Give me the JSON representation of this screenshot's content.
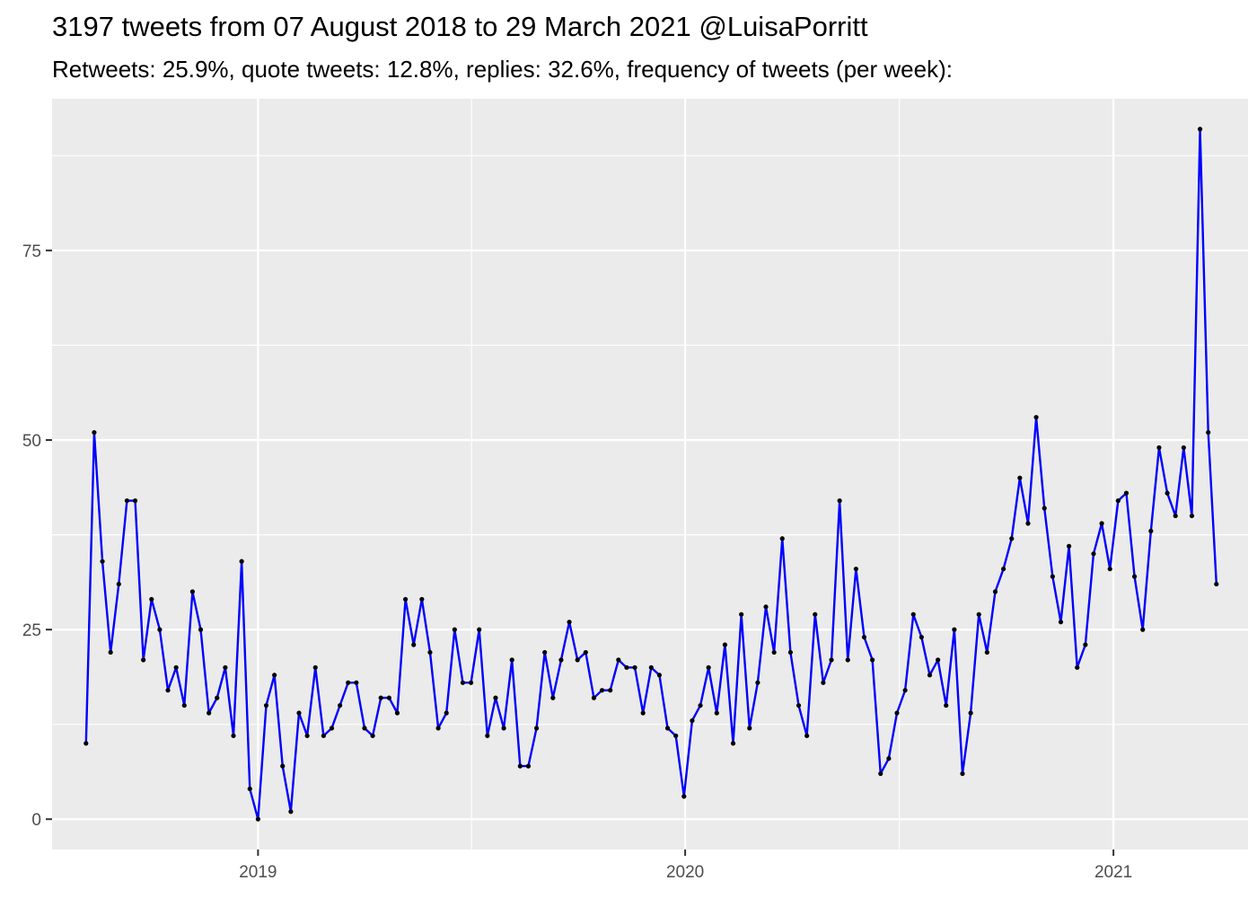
{
  "chart_data": {
    "type": "line",
    "title": "3197 tweets from 07 August 2018 to 29 March 2021 @LuisaPorritt",
    "subtitle": "Retweets: 25.9%, quote tweets: 12.8%, replies: 32.6%, frequency of tweets (per week):",
    "xlabel": "",
    "ylabel": "",
    "x_start": "2018-08-07",
    "x_step_days": 7,
    "xlim": [
      "2018-07-09",
      "2021-04-26"
    ],
    "ylim": [
      -4,
      95
    ],
    "x_ticks": [
      {
        "label": "2019",
        "date": "2019-01-01"
      },
      {
        "label": "2020",
        "date": "2020-01-01"
      },
      {
        "label": "2021",
        "date": "2021-01-01"
      }
    ],
    "y_ticks": [
      0,
      25,
      50,
      75
    ],
    "grid": true,
    "line_color": "#0000ff",
    "point_color": "#000000",
    "panel_color": "#ebebeb",
    "values": [
      10,
      51,
      34,
      22,
      31,
      42,
      42,
      21,
      29,
      25,
      17,
      20,
      15,
      30,
      25,
      14,
      16,
      20,
      11,
      34,
      4,
      0,
      15,
      19,
      7,
      1,
      14,
      11,
      20,
      11,
      12,
      15,
      18,
      18,
      12,
      11,
      16,
      16,
      14,
      29,
      23,
      29,
      22,
      12,
      14,
      25,
      18,
      18,
      25,
      11,
      16,
      12,
      21,
      7,
      7,
      12,
      22,
      16,
      21,
      26,
      21,
      22,
      16,
      17,
      17,
      21,
      20,
      20,
      14,
      20,
      19,
      12,
      11,
      3,
      13,
      15,
      20,
      14,
      23,
      10,
      27,
      12,
      18,
      28,
      22,
      37,
      22,
      15,
      11,
      27,
      18,
      21,
      42,
      21,
      33,
      24,
      21,
      6,
      8,
      14,
      17,
      27,
      24,
      19,
      21,
      15,
      25,
      6,
      14,
      27,
      22,
      30,
      33,
      37,
      45,
      39,
      53,
      41,
      32,
      26,
      36,
      20,
      23,
      35,
      39,
      33,
      42,
      43,
      32,
      25,
      38,
      49,
      43,
      40,
      49,
      40,
      91,
      51,
      31
    ]
  }
}
